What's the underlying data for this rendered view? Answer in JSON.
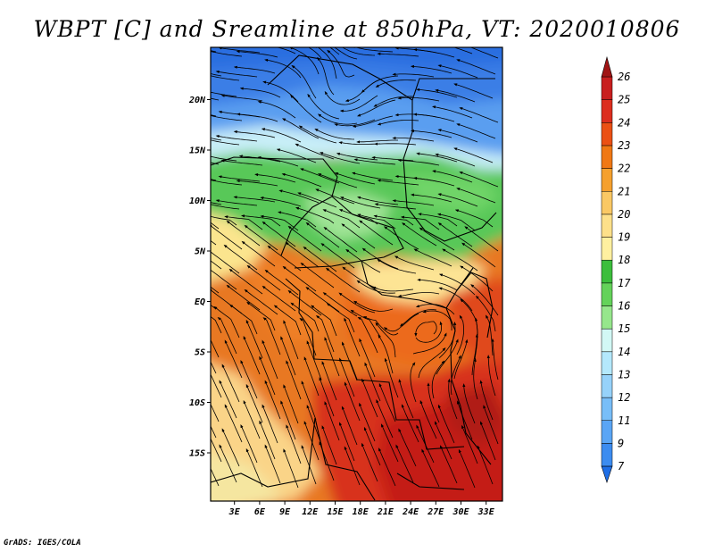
{
  "title": "WBPT [C] and Sreamline at 850hPa, VT: 2020010806",
  "credit": "GrADS: IGES/COLA",
  "map": {
    "lat_ticks": [
      {
        "label": "20N",
        "lat": 20
      },
      {
        "label": "15N",
        "lat": 15
      },
      {
        "label": "10N",
        "lat": 10
      },
      {
        "label": "5N",
        "lat": 5
      },
      {
        "label": "EQ",
        "lat": 0
      },
      {
        "label": "5S",
        "lat": -5
      },
      {
        "label": "10S",
        "lat": -10
      },
      {
        "label": "15S",
        "lat": -15
      }
    ],
    "lon_ticks": [
      {
        "label": "3E",
        "lon": 3
      },
      {
        "label": "6E",
        "lon": 6
      },
      {
        "label": "9E",
        "lon": 9
      },
      {
        "label": "12E",
        "lon": 12
      },
      {
        "label": "15E",
        "lon": 15
      },
      {
        "label": "18E",
        "lon": 18
      },
      {
        "label": "21E",
        "lon": 21
      },
      {
        "label": "24E",
        "lon": 24
      },
      {
        "label": "27E",
        "lon": 27
      },
      {
        "label": "30E",
        "lon": 30
      },
      {
        "label": "33E",
        "lon": 33
      }
    ]
  },
  "colorbar": {
    "labels": [
      "7",
      "9",
      "11",
      "12",
      "13",
      "14",
      "15",
      "16",
      "17",
      "18",
      "19",
      "20",
      "21",
      "22",
      "23",
      "24",
      "25",
      "26"
    ],
    "colors": [
      "#1e6ee6",
      "#3c8cf0",
      "#5aa5f5",
      "#78bef8",
      "#96d2fa",
      "#b4e8fc",
      "#d2f8f5",
      "#96e68c",
      "#64d25a",
      "#3cbe3c",
      "#fff0a0",
      "#fde08a",
      "#fac864",
      "#f5a02d",
      "#f07814",
      "#eb5014",
      "#dc2d1e",
      "#c81e1e",
      "#a01414"
    ]
  }
}
